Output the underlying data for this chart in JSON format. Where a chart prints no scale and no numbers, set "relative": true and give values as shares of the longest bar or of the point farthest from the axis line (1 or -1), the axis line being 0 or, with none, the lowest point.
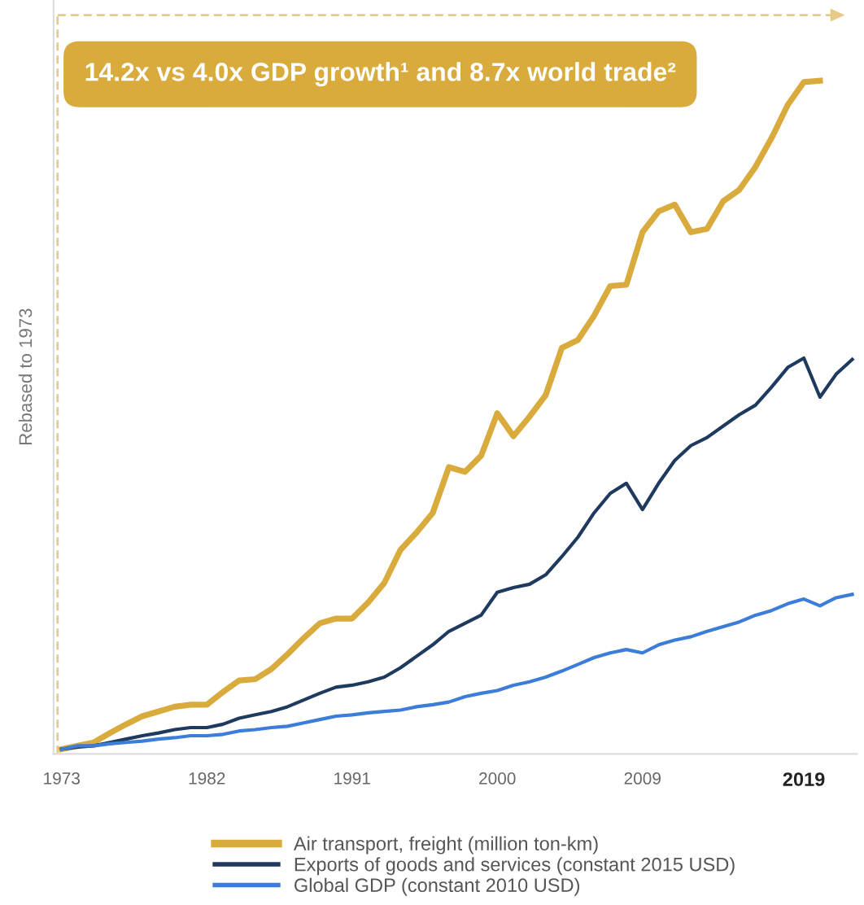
{
  "chart_data": {
    "type": "line",
    "relative": true,
    "title": "14.2x vs 4.0x GDP growth¹ and 8.7x world trade²",
    "ylabel": "Rebased to 1973",
    "xlim": [
      1972.5,
      2022.3
    ],
    "xticks": [
      1973,
      1982,
      1991,
      2000,
      2009,
      2019
    ],
    "grid": false,
    "legend": "bottom",
    "marker": "none",
    "line_style": "solid",
    "series": [
      {
        "name": "Air transport, freight (million ton-km)",
        "color": "#d9ab3c",
        "x": [
          1973,
          1974,
          1975,
          1976,
          1977,
          1978,
          1979,
          1980,
          1981,
          1982,
          1983,
          1984,
          1985,
          1986,
          1987,
          1988,
          1989,
          1990,
          1991,
          1992,
          1993,
          1994,
          1995,
          1996,
          1997,
          1998,
          1999,
          2000,
          2001,
          2002,
          2003,
          2004,
          2005,
          2006,
          2007,
          2008,
          2009,
          2010,
          2011,
          2012,
          2013,
          2014,
          2015,
          2016,
          2017,
          2018,
          2019,
          2020
        ],
        "values": [
          0.007,
          0.012,
          0.017,
          0.031,
          0.044,
          0.056,
          0.063,
          0.07,
          0.073,
          0.073,
          0.092,
          0.109,
          0.111,
          0.126,
          0.148,
          0.172,
          0.194,
          0.201,
          0.201,
          0.225,
          0.254,
          0.303,
          0.329,
          0.358,
          0.426,
          0.419,
          0.443,
          0.506,
          0.472,
          0.501,
          0.533,
          0.603,
          0.615,
          0.651,
          0.695,
          0.697,
          0.775,
          0.806,
          0.816,
          0.775,
          0.78,
          0.821,
          0.838,
          0.872,
          0.915,
          0.964,
          0.998,
          1.0
        ]
      },
      {
        "name": "Exports of goods and services (constant 2015 USD)",
        "color": "#1f3a5f",
        "x": [
          1973,
          1974,
          1975,
          1976,
          1977,
          1978,
          1979,
          1980,
          1981,
          1982,
          1983,
          1984,
          1985,
          1986,
          1987,
          1988,
          1989,
          1990,
          1991,
          1992,
          1993,
          1994,
          1995,
          1996,
          1997,
          1998,
          1999,
          2000,
          2001,
          2002,
          2003,
          2004,
          2005,
          2006,
          2007,
          2008,
          2009,
          2010,
          2011,
          2012,
          2013,
          2014,
          2015,
          2016,
          2017,
          2018,
          2019,
          2020,
          2021,
          2022
        ],
        "values": [
          0.007,
          0.01,
          0.012,
          0.017,
          0.022,
          0.027,
          0.031,
          0.036,
          0.039,
          0.039,
          0.044,
          0.053,
          0.058,
          0.063,
          0.07,
          0.08,
          0.09,
          0.099,
          0.102,
          0.107,
          0.114,
          0.128,
          0.145,
          0.162,
          0.182,
          0.194,
          0.206,
          0.24,
          0.247,
          0.252,
          0.266,
          0.293,
          0.322,
          0.358,
          0.387,
          0.402,
          0.363,
          0.402,
          0.436,
          0.458,
          0.47,
          0.487,
          0.504,
          0.518,
          0.545,
          0.574,
          0.588,
          0.53,
          0.564,
          0.586
        ]
      },
      {
        "name": "Global GDP (constant 2010 USD)",
        "color": "#3b7dd8",
        "x": [
          1973,
          1974,
          1975,
          1976,
          1977,
          1978,
          1979,
          1980,
          1981,
          1982,
          1983,
          1984,
          1985,
          1986,
          1987,
          1988,
          1989,
          1990,
          1991,
          1992,
          1993,
          1994,
          1995,
          1996,
          1997,
          1998,
          1999,
          2000,
          2001,
          2002,
          2003,
          2004,
          2005,
          2006,
          2007,
          2008,
          2009,
          2010,
          2011,
          2012,
          2013,
          2014,
          2015,
          2016,
          2017,
          2018,
          2019,
          2020,
          2021,
          2022
        ],
        "values": [
          0.007,
          0.012,
          0.012,
          0.015,
          0.017,
          0.019,
          0.022,
          0.024,
          0.027,
          0.027,
          0.029,
          0.034,
          0.036,
          0.039,
          0.041,
          0.046,
          0.051,
          0.056,
          0.058,
          0.061,
          0.063,
          0.065,
          0.07,
          0.073,
          0.077,
          0.085,
          0.09,
          0.094,
          0.102,
          0.107,
          0.114,
          0.123,
          0.133,
          0.143,
          0.15,
          0.155,
          0.15,
          0.162,
          0.169,
          0.174,
          0.182,
          0.189,
          0.196,
          0.206,
          0.213,
          0.223,
          0.23,
          0.22,
          0.232,
          0.237
        ]
      }
    ]
  }
}
